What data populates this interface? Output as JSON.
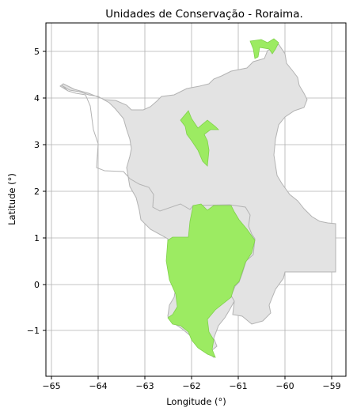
{
  "title": "Unidades de Conservação - Roraima.",
  "xlabel": "Longitude (°)",
  "ylabel": "Latitude (°)",
  "x_ticks": [
    "−65",
    "−64",
    "−63",
    "−62",
    "−61",
    "−60",
    "−59"
  ],
  "y_ticks": [
    "−1",
    "0",
    "1",
    "2",
    "3",
    "4",
    "5"
  ],
  "x_range": [
    -65.1,
    -58.7
  ],
  "y_range": [
    -1.9,
    5.6
  ],
  "grid": true,
  "colors": {
    "state_fill": "#e3e3e3",
    "state_edge": "#b3b3b3",
    "conservation_fill": "#9ceb62",
    "conservation_edge": "#7fd14a",
    "grid": "#b0b0b0"
  },
  "layers": [
    {
      "name": "state-boundary",
      "style": "state"
    },
    {
      "name": "conservation-units",
      "style": "conservation"
    }
  ]
}
